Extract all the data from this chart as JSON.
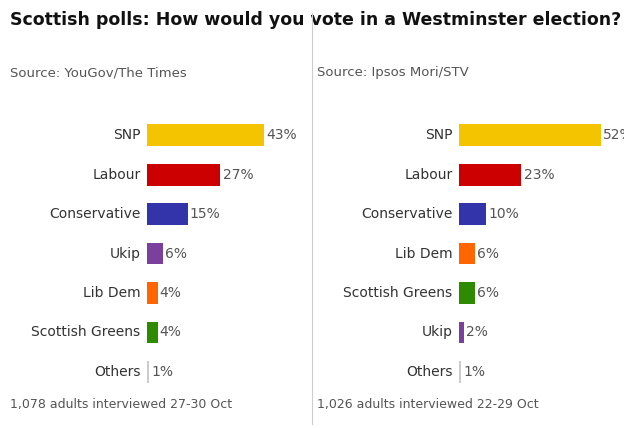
{
  "title": "Scottish polls: How would you vote in a Westminster election?",
  "poll1": {
    "source": "Source: YouGov/The Times",
    "footnote": "1,078 adults interviewed 27-30 Oct",
    "parties": [
      "SNP",
      "Labour",
      "Conservative",
      "Ukip",
      "Lib Dem",
      "Scottish Greens",
      "Others"
    ],
    "values": [
      43,
      27,
      15,
      6,
      4,
      4,
      1
    ],
    "colors": [
      "#F5C400",
      "#CC0000",
      "#3333AA",
      "#7B3F9E",
      "#FF6600",
      "#2E8B00",
      "#CCCCCC"
    ]
  },
  "poll2": {
    "source": "Source: Ipsos Mori/STV",
    "footnote": "1,026 adults interviewed 22-29 Oct",
    "parties": [
      "SNP",
      "Labour",
      "Conservative",
      "Lib Dem",
      "Scottish Greens",
      "Ukip",
      "Others"
    ],
    "values": [
      52,
      23,
      10,
      6,
      6,
      2,
      1
    ],
    "colors": [
      "#F5C400",
      "#CC0000",
      "#3333AA",
      "#FF6600",
      "#2E8B00",
      "#7B3F9E",
      "#CCCCCC"
    ]
  },
  "bg_color": "#FFFFFF",
  "title_fontsize": 12.5,
  "label_fontsize": 10,
  "source_fontsize": 9.5,
  "footnote_fontsize": 9,
  "value_fontsize": 10,
  "max_value": 56,
  "bar_height": 0.55
}
